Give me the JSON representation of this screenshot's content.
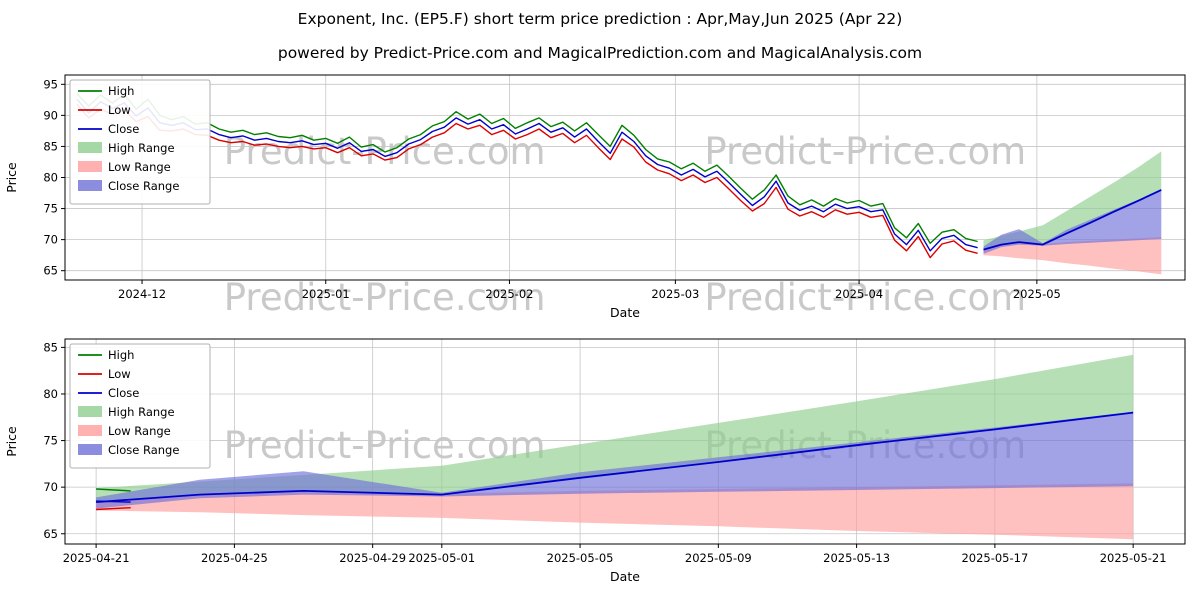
{
  "page": {
    "title": "Exponent, Inc. (EP5.F) short term price prediction : Apr,May,Jun 2025 (Apr 22)",
    "subtitle": "powered by Predict-Price.com and MagicalPrediction.com and MagicalAnalysis.com",
    "watermark": "Predict-Price.com"
  },
  "colors": {
    "high": "#008000",
    "low": "#dd0000",
    "close": "#0000cc",
    "high_range": "#8fce8f",
    "low_range": "#ff9e9e",
    "close_range": "#7070d8",
    "grid": "#c6c6c6",
    "axis": "#000000",
    "watermark": "#c9c9c9"
  },
  "legend": [
    {
      "label": "High",
      "swatch": "line",
      "color": "high"
    },
    {
      "label": "Low",
      "swatch": "line",
      "color": "low"
    },
    {
      "label": "Close",
      "swatch": "line",
      "color": "close"
    },
    {
      "label": "High Range",
      "swatch": "patch",
      "color": "high_range"
    },
    {
      "label": "Low Range",
      "swatch": "patch",
      "color": "low_range"
    },
    {
      "label": "Close Range",
      "swatch": "patch",
      "color": "close_range"
    }
  ],
  "chart_data": [
    {
      "name": "price-history-and-forecast",
      "type": "line",
      "xlabel": "Date",
      "ylabel": "Price",
      "x_unit": "days since 2024-11-18",
      "xlim": [
        0,
        189
      ],
      "ylim": [
        63.5,
        96.5
      ],
      "yticks": [
        65,
        70,
        75,
        80,
        85,
        90,
        95
      ],
      "xticks": [
        {
          "pos": 13,
          "label": "2024-12"
        },
        {
          "pos": 44,
          "label": "2025-01"
        },
        {
          "pos": 75,
          "label": "2025-02"
        },
        {
          "pos": 103,
          "label": "2025-03"
        },
        {
          "pos": 134,
          "label": "2025-04"
        },
        {
          "pos": 164,
          "label": "2025-05"
        }
      ],
      "hx": [
        2,
        4,
        6,
        8,
        10,
        12,
        14,
        16,
        18,
        20,
        22,
        24,
        26,
        28,
        30,
        32,
        34,
        36,
        38,
        40,
        42,
        44,
        46,
        48,
        50,
        52,
        54,
        56,
        58,
        60,
        62,
        64,
        66,
        68,
        70,
        72,
        74,
        76,
        78,
        80,
        82,
        84,
        86,
        88,
        90,
        92,
        94,
        96,
        98,
        100,
        102,
        104,
        106,
        108,
        110,
        112,
        114,
        116,
        118,
        120,
        122,
        124,
        126,
        128,
        130,
        132,
        134,
        136,
        138,
        140,
        142,
        144,
        146,
        148,
        150,
        152,
        154
      ],
      "fx": [
        155,
        158,
        161,
        165,
        169,
        173,
        177,
        181,
        185
      ],
      "bands": [
        {
          "name": "high-range",
          "color": "high_range",
          "x_ref": "fx",
          "upper": [
            69.9,
            70.6,
            71.3,
            72.3,
            74.6,
            76.9,
            79.2,
            81.6,
            84.2
          ],
          "lower": [
            68.4,
            69.2,
            69.6,
            69.2,
            71.0,
            72.7,
            74.5,
            76.2,
            78.0
          ]
        },
        {
          "name": "low-range",
          "color": "low_range",
          "x_ref": "fx",
          "upper": [
            68.3,
            69.1,
            69.5,
            69.3,
            69.6,
            69.8,
            70.0,
            70.2,
            70.4
          ],
          "lower": [
            67.5,
            67.3,
            67.0,
            66.7,
            66.2,
            65.8,
            65.3,
            64.9,
            64.4
          ]
        },
        {
          "name": "close-range",
          "color": "close_range",
          "x_ref": "fx",
          "upper": [
            68.9,
            70.8,
            71.7,
            69.4,
            71.6,
            73.2,
            74.8,
            76.4,
            78.1
          ],
          "lower": [
            67.7,
            68.8,
            69.2,
            69.0,
            69.3,
            69.5,
            69.7,
            69.9,
            70.1
          ]
        }
      ],
      "lines": [
        {
          "name": "high",
          "color": "high",
          "x_ref": "hx",
          "y": [
            93.5,
            91.5,
            93.3,
            92.0,
            93.4,
            91.0,
            92.6,
            90.0,
            89.3,
            89.8,
            88.6,
            88.8,
            87.8,
            87.3,
            87.6,
            86.9,
            87.2,
            86.6,
            86.4,
            86.8,
            86.0,
            86.3,
            85.5,
            86.5,
            84.9,
            85.3,
            84.1,
            84.8,
            86.2,
            86.9,
            88.3,
            89.0,
            90.6,
            89.4,
            90.2,
            88.7,
            89.5,
            87.9,
            88.8,
            89.6,
            88.2,
            88.9,
            87.5,
            88.8,
            86.9,
            85.0,
            88.4,
            86.8,
            84.5,
            83.0,
            82.5,
            81.4,
            82.3,
            81.0,
            82.0,
            80.2,
            78.3,
            76.5,
            78.0,
            80.4,
            77.0,
            75.6,
            76.4,
            75.4,
            76.6,
            75.9,
            76.3,
            75.4,
            75.8,
            71.9,
            70.3,
            72.6,
            69.4,
            71.2,
            71.6,
            70.2,
            69.7
          ]
        },
        {
          "name": "low",
          "color": "low",
          "x_ref": "hx",
          "y": [
            91.8,
            89.6,
            91.0,
            90.2,
            90.9,
            89.0,
            89.8,
            87.6,
            87.5,
            87.8,
            86.9,
            86.8,
            86.0,
            85.6,
            85.8,
            85.2,
            85.4,
            85.0,
            84.8,
            85.0,
            84.6,
            84.8,
            84.0,
            84.8,
            83.5,
            83.8,
            82.8,
            83.2,
            84.6,
            85.3,
            86.5,
            87.2,
            88.7,
            87.8,
            88.4,
            86.9,
            87.6,
            86.2,
            86.9,
            87.8,
            86.4,
            87.1,
            85.6,
            86.8,
            84.8,
            82.9,
            86.2,
            84.9,
            82.5,
            81.2,
            80.6,
            79.5,
            80.4,
            79.2,
            80.0,
            78.2,
            76.3,
            74.6,
            75.8,
            78.4,
            74.9,
            73.8,
            74.5,
            73.6,
            74.8,
            74.1,
            74.4,
            73.6,
            73.9,
            69.9,
            68.2,
            70.5,
            67.1,
            69.3,
            69.8,
            68.3,
            67.8
          ]
        },
        {
          "name": "close",
          "color": "close",
          "x_ref": "hx",
          "y": [
            92.6,
            90.4,
            92.2,
            91.1,
            92.0,
            89.9,
            91.2,
            88.8,
            88.4,
            88.8,
            87.7,
            87.8,
            86.9,
            86.4,
            86.7,
            86.0,
            86.3,
            85.8,
            85.6,
            85.9,
            85.3,
            85.5,
            84.7,
            85.6,
            84.2,
            84.5,
            83.4,
            84.0,
            85.4,
            86.1,
            87.4,
            88.1,
            89.6,
            88.6,
            89.3,
            87.8,
            88.5,
            87.0,
            87.8,
            88.7,
            87.3,
            88.0,
            86.5,
            87.8,
            85.8,
            83.9,
            87.3,
            85.8,
            83.5,
            82.1,
            81.5,
            80.4,
            81.3,
            80.1,
            81.0,
            79.2,
            77.3,
            75.5,
            76.9,
            79.4,
            75.9,
            74.7,
            75.4,
            74.5,
            75.7,
            75.0,
            75.3,
            74.5,
            74.8,
            70.9,
            69.2,
            71.5,
            68.2,
            70.2,
            70.7,
            69.2,
            68.7
          ]
        },
        {
          "name": "close-forecast",
          "color": "close",
          "w": 1.8,
          "x_ref": "fx",
          "y": [
            68.4,
            69.2,
            69.6,
            69.2,
            71.0,
            72.7,
            74.5,
            76.2,
            78.0
          ]
        }
      ]
    },
    {
      "name": "forecast-detail",
      "type": "line",
      "xlabel": "Date",
      "ylabel": "Price",
      "x_unit": "days since 2025-04-21",
      "xlim": [
        -0.9,
        31.5
      ],
      "ylim": [
        63.9,
        85.9
      ],
      "yticks": [
        65,
        70,
        75,
        80,
        85
      ],
      "xticks": [
        {
          "pos": 0,
          "label": "2025-04-21"
        },
        {
          "pos": 4,
          "label": "2025-04-25"
        },
        {
          "pos": 8,
          "label": "2025-04-29"
        },
        {
          "pos": 10,
          "label": "2025-05-01"
        },
        {
          "pos": 14,
          "label": "2025-05-05"
        },
        {
          "pos": 18,
          "label": "2025-05-09"
        },
        {
          "pos": 22,
          "label": "2025-05-13"
        },
        {
          "pos": 26,
          "label": "2025-05-17"
        },
        {
          "pos": 30,
          "label": "2025-05-21"
        }
      ],
      "hx": [
        0,
        1
      ],
      "fx": [
        0,
        3,
        6,
        10,
        14,
        18,
        22,
        26,
        30
      ],
      "bands": [
        {
          "name": "high-range",
          "color": "high_range",
          "x_ref": "fx",
          "upper": [
            69.9,
            70.6,
            71.3,
            72.3,
            74.6,
            76.9,
            79.2,
            81.6,
            84.2
          ],
          "lower": [
            68.4,
            69.2,
            69.6,
            69.2,
            71.0,
            72.7,
            74.5,
            76.2,
            78.0
          ]
        },
        {
          "name": "low-range",
          "color": "low_range",
          "x_ref": "fx",
          "upper": [
            68.3,
            69.1,
            69.5,
            69.3,
            69.6,
            69.8,
            70.0,
            70.2,
            70.4
          ],
          "lower": [
            67.5,
            67.3,
            67.0,
            66.7,
            66.2,
            65.8,
            65.3,
            64.9,
            64.4
          ]
        },
        {
          "name": "close-range",
          "color": "close_range",
          "x_ref": "fx",
          "upper": [
            68.9,
            70.8,
            71.7,
            69.4,
            71.6,
            73.2,
            74.8,
            76.4,
            78.1
          ],
          "lower": [
            67.7,
            68.8,
            69.2,
            69.0,
            69.3,
            69.5,
            69.7,
            69.9,
            70.1
          ]
        }
      ],
      "lines": [
        {
          "name": "high",
          "color": "high",
          "x_ref": "hx",
          "y": [
            69.8,
            69.6
          ]
        },
        {
          "name": "low",
          "color": "low",
          "x_ref": "hx",
          "y": [
            67.6,
            67.8
          ]
        },
        {
          "name": "close",
          "color": "close",
          "x_ref": "hx",
          "y": [
            68.5,
            68.4
          ]
        },
        {
          "name": "close-forecast",
          "color": "close",
          "w": 1.8,
          "x_ref": "fx",
          "y": [
            68.4,
            69.2,
            69.6,
            69.2,
            71.0,
            72.7,
            74.5,
            76.2,
            78.0
          ]
        }
      ]
    }
  ]
}
